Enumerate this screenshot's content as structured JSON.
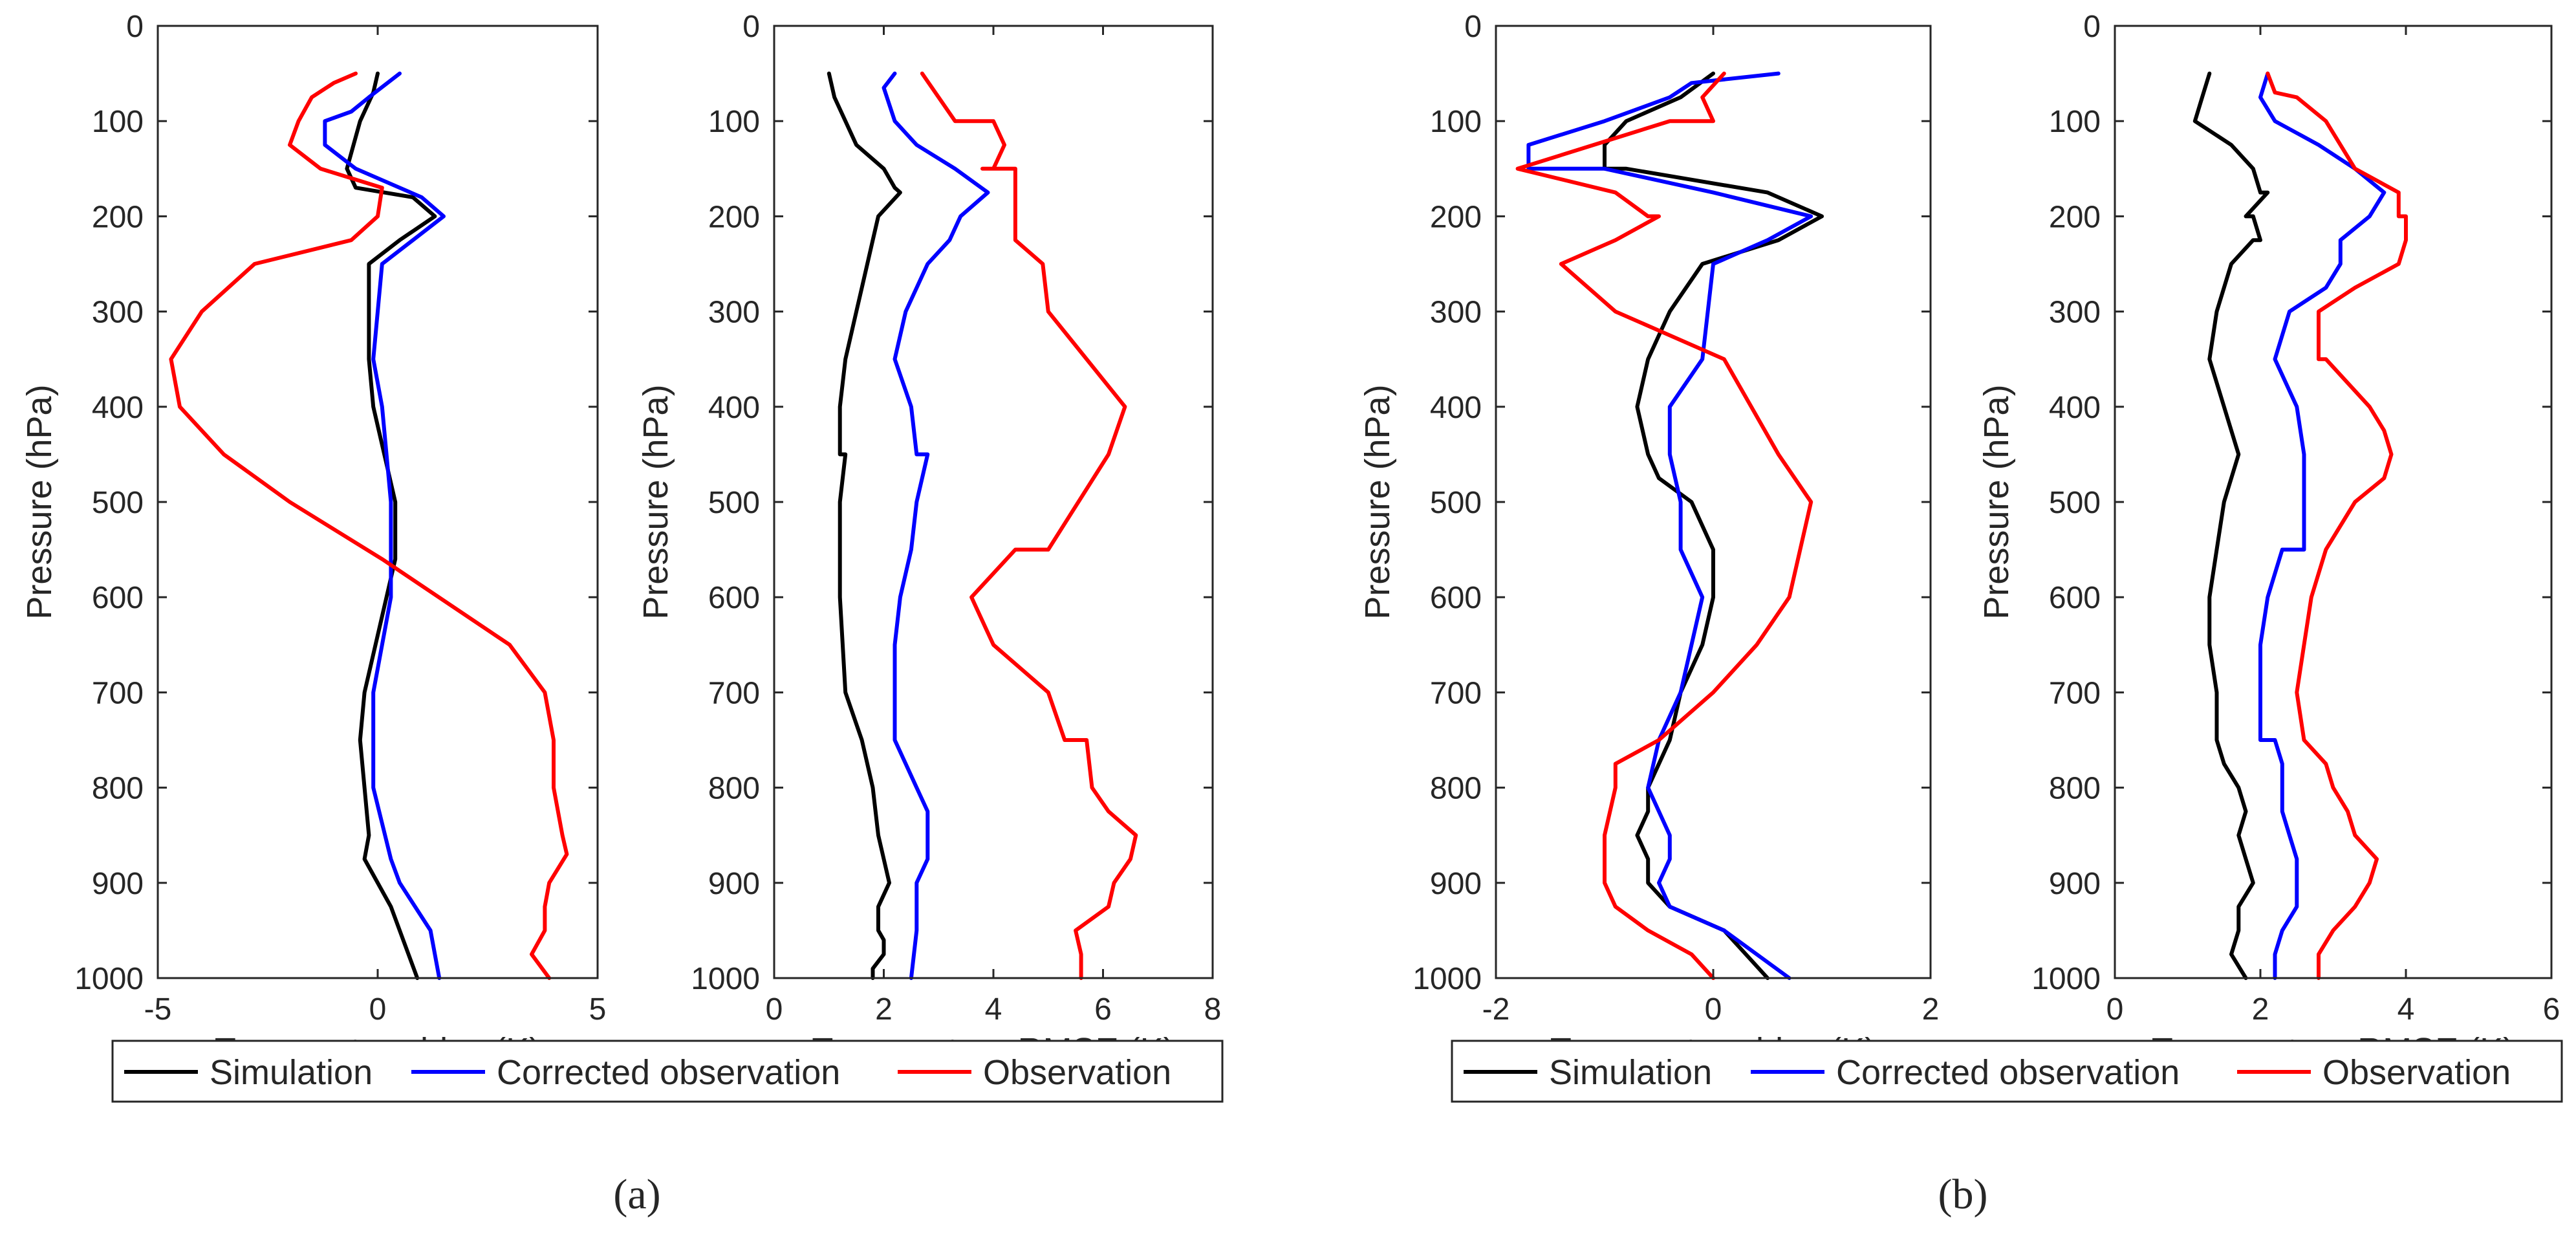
{
  "chart_data": [
    {
      "type": "line",
      "panel": "a",
      "title": "",
      "xlabel": "Temperature bias (K)",
      "ylabel": "Pressure (hPa)",
      "xlim": [
        -5,
        5
      ],
      "ylim": [
        0,
        1000
      ],
      "y_reversed": true,
      "xticks": [
        -5,
        0,
        5
      ],
      "yticks": [
        0,
        100,
        200,
        300,
        400,
        500,
        600,
        700,
        800,
        900,
        1000
      ],
      "series": [
        {
          "name": "Simulation",
          "color": "#000000",
          "x": [
            0.0,
            -0.1,
            -0.4,
            -0.7,
            -0.5,
            0.8,
            1.3,
            0.5,
            -0.2,
            -0.2,
            -0.1,
            0.4,
            0.4,
            0.2,
            -0.3,
            -0.4,
            -0.2,
            -0.3,
            0.3,
            0.9
          ],
          "y": [
            50,
            70,
            100,
            150,
            170,
            180,
            200,
            225,
            250,
            350,
            400,
            500,
            560,
            600,
            700,
            750,
            850,
            875,
            925,
            1000
          ]
        },
        {
          "name": "Corrected observation",
          "color": "#0000FF",
          "x": [
            0.5,
            -0.2,
            -0.6,
            -1.2,
            -1.2,
            -0.5,
            0.5,
            1.0,
            1.5,
            0.8,
            0.1,
            -0.1,
            0.1,
            0.3,
            0.3,
            -0.1,
            -0.1,
            0.3,
            0.5,
            1.2,
            1.4
          ],
          "y": [
            50,
            75,
            90,
            100,
            125,
            150,
            170,
            180,
            200,
            225,
            250,
            350,
            400,
            500,
            600,
            700,
            800,
            875,
            900,
            950,
            1000
          ]
        },
        {
          "name": "Observation",
          "color": "#FF0000",
          "x": [
            -0.5,
            -1.0,
            -1.5,
            -1.8,
            -2.0,
            -1.3,
            0.1,
            0.0,
            -0.6,
            -2.8,
            -4.0,
            -4.7,
            -4.5,
            -3.5,
            -2.0,
            0.1,
            3.0,
            3.8,
            4.0,
            4.0,
            4.2,
            4.3,
            3.9,
            3.8,
            3.8,
            3.5,
            3.9
          ],
          "y": [
            50,
            60,
            75,
            100,
            125,
            150,
            170,
            200,
            225,
            250,
            300,
            350,
            400,
            450,
            500,
            560,
            650,
            700,
            750,
            800,
            850,
            870,
            900,
            925,
            950,
            975,
            1000
          ]
        }
      ]
    },
    {
      "type": "line",
      "panel": "a",
      "title": "",
      "xlabel": "Temperature RMSE (K)",
      "ylabel": "Pressure (hPa)",
      "xlim": [
        0,
        8
      ],
      "ylim": [
        0,
        1000
      ],
      "y_reversed": true,
      "xticks": [
        0,
        2,
        4,
        6,
        8
      ],
      "yticks": [
        0,
        100,
        200,
        300,
        400,
        500,
        600,
        700,
        800,
        900,
        1000
      ],
      "series": [
        {
          "name": "Simulation",
          "color": "#000000",
          "x": [
            1.0,
            1.1,
            1.3,
            1.5,
            2.0,
            2.2,
            2.3,
            1.9,
            1.8,
            1.6,
            1.5,
            1.3,
            1.2,
            1.2,
            1.3,
            1.2,
            1.2,
            1.2,
            1.3,
            1.6,
            1.8,
            1.9,
            2.0,
            2.1,
            1.9,
            1.9,
            2.0,
            2.0,
            1.8,
            1.8
          ],
          "y": [
            50,
            75,
            100,
            125,
            150,
            170,
            175,
            200,
            225,
            275,
            300,
            350,
            400,
            450,
            450,
            500,
            550,
            600,
            700,
            750,
            800,
            850,
            875,
            900,
            925,
            950,
            960,
            975,
            990,
            1000
          ]
        },
        {
          "name": "Corrected observation",
          "color": "#0000FF",
          "x": [
            2.2,
            2.0,
            2.2,
            2.6,
            3.3,
            3.9,
            3.4,
            3.2,
            2.8,
            2.4,
            2.2,
            2.5,
            2.6,
            2.8,
            2.6,
            2.5,
            2.3,
            2.2,
            2.2,
            2.2,
            2.2,
            2.4,
            2.6,
            2.8,
            2.8,
            2.8,
            2.6,
            2.6,
            2.6,
            2.5
          ],
          "y": [
            50,
            65,
            100,
            125,
            150,
            175,
            200,
            225,
            250,
            300,
            350,
            400,
            450,
            450,
            500,
            550,
            600,
            650,
            700,
            750,
            750,
            775,
            800,
            825,
            850,
            875,
            900,
            925,
            950,
            1000
          ]
        },
        {
          "name": "Observation",
          "color": "#FF0000",
          "x": [
            2.7,
            3.0,
            3.3,
            4.0,
            4.2,
            4.0,
            3.8,
            4.4,
            4.4,
            4.4,
            4.9,
            5.0,
            5.0,
            6.4,
            6.1,
            5.0,
            4.4,
            3.6,
            4.0,
            5.0,
            5.3,
            5.7,
            5.8,
            6.1,
            6.6,
            6.5,
            6.2,
            6.1,
            5.5,
            5.6,
            5.6
          ],
          "y": [
            50,
            75,
            100,
            100,
            125,
            150,
            150,
            150,
            200,
            225,
            250,
            300,
            300,
            400,
            450,
            550,
            550,
            600,
            650,
            700,
            750,
            750,
            800,
            825,
            850,
            875,
            900,
            925,
            950,
            975,
            1000
          ]
        }
      ]
    },
    {
      "type": "line",
      "panel": "b",
      "title": "",
      "xlabel": "Temperature bias (K)",
      "ylabel": "Pressure (hPa)",
      "xlim": [
        -2,
        2
      ],
      "ylim": [
        0,
        1000
      ],
      "y_reversed": true,
      "xticks": [
        -2,
        0,
        2
      ],
      "yticks": [
        0,
        100,
        200,
        300,
        400,
        500,
        600,
        700,
        800,
        900,
        1000
      ],
      "series": [
        {
          "name": "Simulation",
          "color": "#000000",
          "x": [
            0.0,
            -0.3,
            -0.8,
            -1.0,
            -1.0,
            -0.8,
            0.5,
            1.0,
            0.6,
            -0.1,
            -0.4,
            -0.6,
            -0.7,
            -0.6,
            -0.5,
            -0.2,
            0.0,
            0.0,
            -0.1,
            -0.3,
            -0.4,
            -0.6,
            -0.6,
            -0.7,
            -0.6,
            -0.6,
            -0.4,
            0.1,
            0.5
          ],
          "y": [
            50,
            75,
            100,
            125,
            150,
            150,
            175,
            200,
            225,
            250,
            300,
            350,
            400,
            450,
            475,
            500,
            550,
            600,
            650,
            700,
            750,
            800,
            825,
            850,
            875,
            900,
            925,
            950,
            1000
          ]
        },
        {
          "name": "Corrected observation",
          "color": "#0000FF",
          "x": [
            0.6,
            -0.2,
            -0.4,
            -1.0,
            -1.7,
            -1.7,
            -1.0,
            0.0,
            0.9,
            0.5,
            0.0,
            -0.1,
            -0.4,
            -0.4,
            -0.3,
            -0.3,
            -0.1,
            -0.2,
            -0.3,
            -0.5,
            -0.6,
            -0.5,
            -0.4,
            -0.4,
            -0.5,
            -0.4,
            0.1,
            0.7
          ],
          "y": [
            50,
            60,
            75,
            100,
            125,
            150,
            150,
            175,
            200,
            225,
            250,
            350,
            400,
            450,
            500,
            550,
            600,
            650,
            700,
            750,
            800,
            825,
            850,
            875,
            900,
            925,
            950,
            1000
          ]
        },
        {
          "name": "Observation",
          "color": "#FF0000",
          "x": [
            0.1,
            -0.1,
            0.0,
            -0.4,
            -1.1,
            -1.8,
            -0.9,
            -0.6,
            -0.5,
            -0.9,
            -1.4,
            -0.9,
            0.1,
            0.6,
            0.9,
            0.8,
            0.7,
            0.4,
            0.0,
            -0.5,
            -0.9,
            -0.9,
            -1.0,
            -1.0,
            -0.9,
            -0.6,
            -0.2,
            0.0
          ],
          "y": [
            50,
            75,
            100,
            100,
            125,
            150,
            175,
            200,
            200,
            225,
            250,
            300,
            350,
            450,
            500,
            550,
            600,
            650,
            700,
            750,
            775,
            800,
            850,
            900,
            925,
            950,
            975,
            1000
          ]
        }
      ]
    },
    {
      "type": "line",
      "panel": "b",
      "title": "",
      "xlabel": "Temperature RMSE (K)",
      "ylabel": "Pressure (hPa)",
      "xlim": [
        0,
        6
      ],
      "ylim": [
        0,
        1000
      ],
      "y_reversed": true,
      "xticks": [
        0,
        2,
        4,
        6
      ],
      "yticks": [
        0,
        100,
        200,
        300,
        400,
        500,
        600,
        700,
        800,
        900,
        1000
      ],
      "series": [
        {
          "name": "Simulation",
          "color": "#000000",
          "x": [
            1.3,
            1.2,
            1.1,
            1.6,
            1.9,
            2.0,
            2.1,
            1.8,
            1.9,
            2.0,
            1.9,
            1.6,
            1.4,
            1.3,
            1.5,
            1.7,
            1.5,
            1.4,
            1.3,
            1.3,
            1.4,
            1.4,
            1.5,
            1.7,
            1.8,
            1.7,
            1.8,
            1.9,
            1.7,
            1.7,
            1.6,
            1.8
          ],
          "y": [
            50,
            75,
            100,
            125,
            150,
            175,
            175,
            200,
            200,
            225,
            225,
            250,
            300,
            350,
            400,
            450,
            500,
            550,
            600,
            650,
            700,
            750,
            775,
            800,
            825,
            850,
            875,
            900,
            925,
            950,
            975,
            1000
          ]
        },
        {
          "name": "Corrected observation",
          "color": "#0000FF",
          "x": [
            2.1,
            2.0,
            2.2,
            2.8,
            3.3,
            3.7,
            3.5,
            3.1,
            3.1,
            2.9,
            2.4,
            2.2,
            2.5,
            2.6,
            2.6,
            2.6,
            2.3,
            2.1,
            2.0,
            2.0,
            2.0,
            2.2,
            2.3,
            2.3,
            2.3,
            2.4,
            2.5,
            2.5,
            2.5,
            2.3,
            2.2,
            2.2
          ],
          "y": [
            50,
            75,
            100,
            125,
            150,
            175,
            200,
            225,
            250,
            275,
            300,
            350,
            400,
            450,
            500,
            550,
            550,
            600,
            650,
            700,
            750,
            750,
            775,
            800,
            825,
            850,
            875,
            900,
            925,
            950,
            975,
            1000
          ]
        },
        {
          "name": "Observation",
          "color": "#FF0000",
          "x": [
            2.1,
            2.2,
            2.5,
            2.9,
            3.3,
            3.9,
            3.9,
            4.0,
            4.0,
            3.9,
            3.3,
            2.8,
            2.8,
            2.9,
            3.5,
            3.7,
            3.8,
            3.7,
            3.3,
            2.9,
            2.7,
            2.6,
            2.5,
            2.6,
            2.9,
            3.0,
            3.2,
            3.3,
            3.6,
            3.5,
            3.3,
            3.0,
            2.8,
            2.8
          ],
          "y": [
            50,
            70,
            75,
            100,
            150,
            175,
            200,
            200,
            225,
            250,
            275,
            300,
            350,
            350,
            400,
            425,
            450,
            475,
            500,
            550,
            600,
            650,
            700,
            750,
            775,
            800,
            825,
            850,
            875,
            900,
            925,
            950,
            975,
            1000
          ]
        }
      ]
    }
  ],
  "legends": [
    {
      "items": [
        "Simulation",
        "Corrected observation",
        "Observation"
      ]
    },
    {
      "items": [
        "Simulation",
        "Corrected observation",
        "Observation"
      ]
    }
  ],
  "panel_labels": {
    "a": "(a)",
    "b": "(b)"
  }
}
